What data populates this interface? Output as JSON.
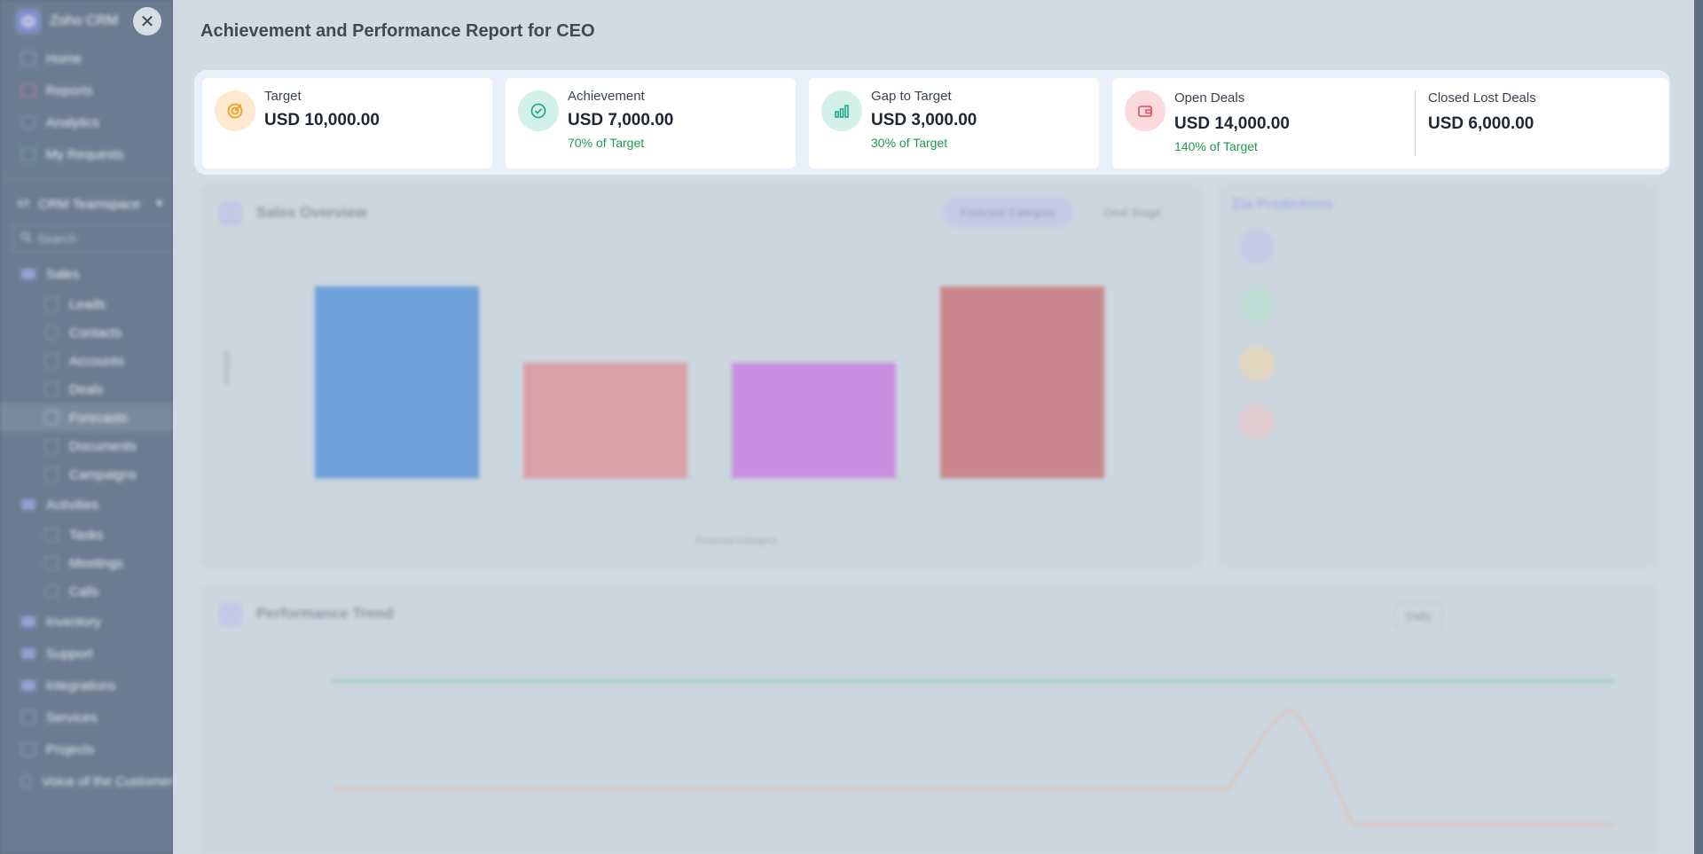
{
  "app": {
    "name": "Zoho CRM"
  },
  "sidebar": {
    "top_items": [
      {
        "label": "Home",
        "icon": "home-icon"
      },
      {
        "label": "Reports",
        "icon": "reports-icon"
      },
      {
        "label": "Analytics",
        "icon": "analytics-icon"
      },
      {
        "label": "My Requests",
        "icon": "requests-icon"
      }
    ],
    "team_badge": "CT",
    "team": "CRM Teamspace",
    "search_placeholder": "Search",
    "sections": [
      {
        "label": "Sales",
        "children": [
          "Leads",
          "Contacts",
          "Accounts",
          "Deals",
          "Forecasts",
          "Documents",
          "Campaigns"
        ]
      },
      {
        "label": "Activities",
        "children": [
          "Tasks",
          "Meetings",
          "Calls"
        ]
      }
    ],
    "bottom_items": [
      {
        "label": "Inventory"
      },
      {
        "label": "Support"
      },
      {
        "label": "Integrations"
      },
      {
        "label": "Services"
      },
      {
        "label": "Projects"
      },
      {
        "label": "Voice of the Customer"
      }
    ],
    "active_item": "Forecasts"
  },
  "panel": {
    "title": "Achievement and Performance Report for  CEO",
    "close_icon": "✕",
    "kpis": {
      "target": {
        "label": "Target",
        "value": "USD 10,000.00"
      },
      "achievement": {
        "label": "Achievement",
        "value": "USD 7,000.00",
        "sub": "70% of Target"
      },
      "gap": {
        "label": "Gap to Target",
        "value": "USD 3,000.00",
        "sub": "30% of Target"
      },
      "open": {
        "label": "Open Deals",
        "value": "USD 14,000.00",
        "sub": "140% of Target"
      },
      "lost": {
        "label": "Closed Lost Deals",
        "value": "USD 6,000.00"
      }
    },
    "colors": {
      "target": "#f0a020",
      "achievement": "#19a383",
      "gap": "#19a383",
      "open": "#e04a56",
      "positive": "#1f9a4a"
    }
  },
  "background": {
    "sales_overview": {
      "title": "Sales Overview",
      "toggle_a": "Forecast Category",
      "toggle_b": "Deal Stage",
      "xlabel": "Forecast Category",
      "ylabel": "Amount",
      "bar_values": [
        10000,
        6000,
        6000,
        10000
      ],
      "bar_colors": [
        "#6d9fd8",
        "#d9a0a6",
        "#c98fe0",
        "#c9868c"
      ],
      "ymax": 10000
    },
    "zia": {
      "title": "Zia Predictions"
    },
    "trend": {
      "title": "Performance Trend",
      "period": "Daily"
    }
  }
}
